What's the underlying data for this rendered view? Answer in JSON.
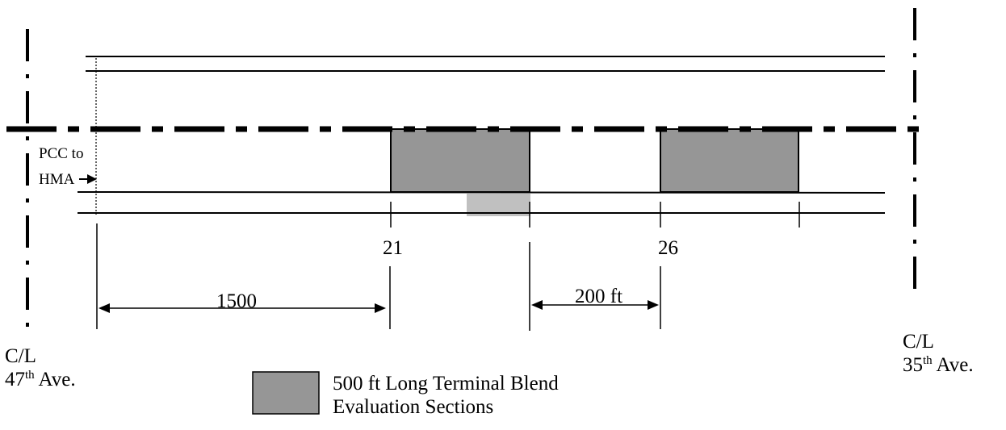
{
  "transition_label": {
    "line1": "PCC to",
    "line2": "HMA"
  },
  "stations": {
    "a": "21",
    "b": "26"
  },
  "dimensions": {
    "first": "1500",
    "second": "200 ft"
  },
  "centerline_left": {
    "line1": "C/L",
    "number": "47",
    "suffix": "th",
    "rest": " Ave."
  },
  "centerline_right": {
    "line1": "C/L",
    "number": "35",
    "suffix": "th",
    "rest": " Ave."
  },
  "legend": {
    "line1": "500 ft Long Terminal Blend",
    "line2": "Evaluation Sections"
  },
  "colors": {
    "section_fill": "#969696",
    "lane_patch": "#c0c0c0",
    "ink": "#000000"
  }
}
